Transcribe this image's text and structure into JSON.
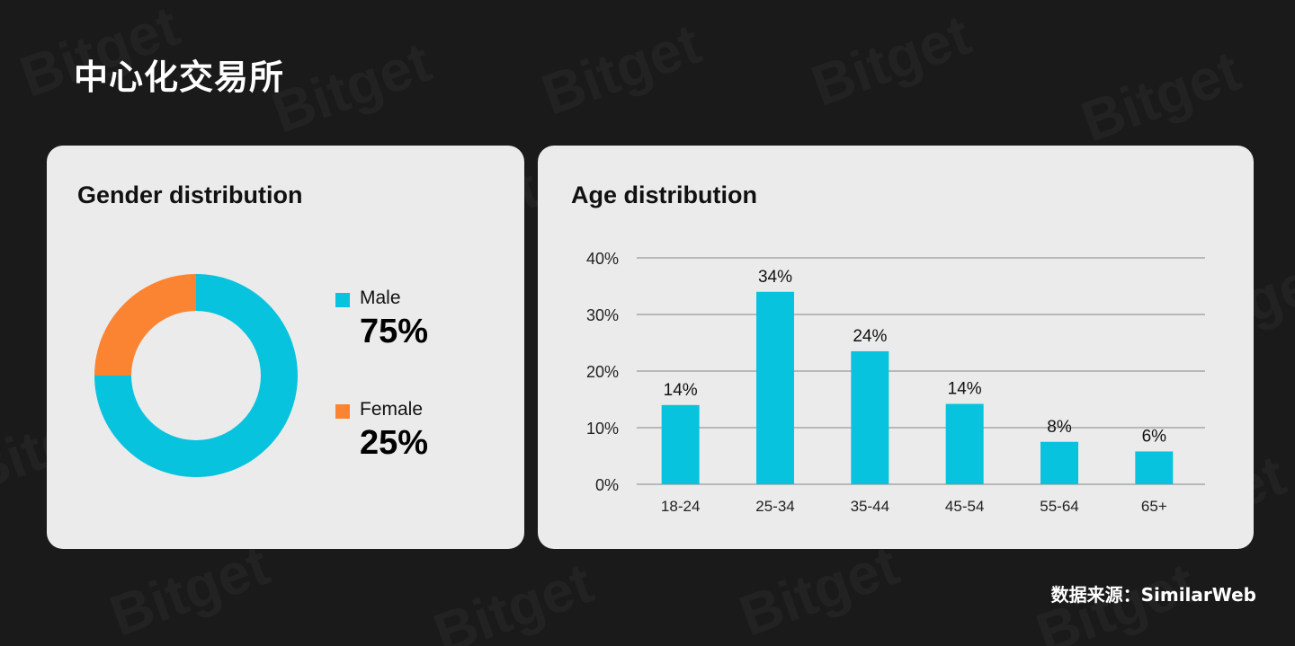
{
  "page": {
    "title": "中心化交易所",
    "source": "数据来源：SimilarWeb",
    "watermark_text": "Bitget"
  },
  "gender": {
    "title": "Gender distribution",
    "items": [
      {
        "label": "Male",
        "value_text": "75%",
        "color": "#08c3dd"
      },
      {
        "label": "Female",
        "value_text": "25%",
        "color": "#fb8433"
      }
    ]
  },
  "age": {
    "title": "Age distribution"
  },
  "chart_data": [
    {
      "type": "pie",
      "title": "Gender distribution",
      "categories": [
        "Male",
        "Female"
      ],
      "values": [
        75,
        25
      ],
      "colors": [
        "#08c3dd",
        "#fb8433"
      ],
      "donut": true
    },
    {
      "type": "bar",
      "title": "Age distribution",
      "categories": [
        "18-24",
        "25-34",
        "35-44",
        "45-54",
        "55-64",
        "65+"
      ],
      "values": [
        14,
        34,
        23.5,
        14.2,
        7.5,
        5.8
      ],
      "data_labels": [
        "14%",
        "34%",
        "24%",
        "14%",
        "8%",
        "6%"
      ],
      "ylim": [
        0,
        40
      ],
      "yticks": [
        "0%",
        "10%",
        "20%",
        "30%",
        "40%"
      ],
      "grid": true,
      "color": "#08c3dd"
    }
  ]
}
